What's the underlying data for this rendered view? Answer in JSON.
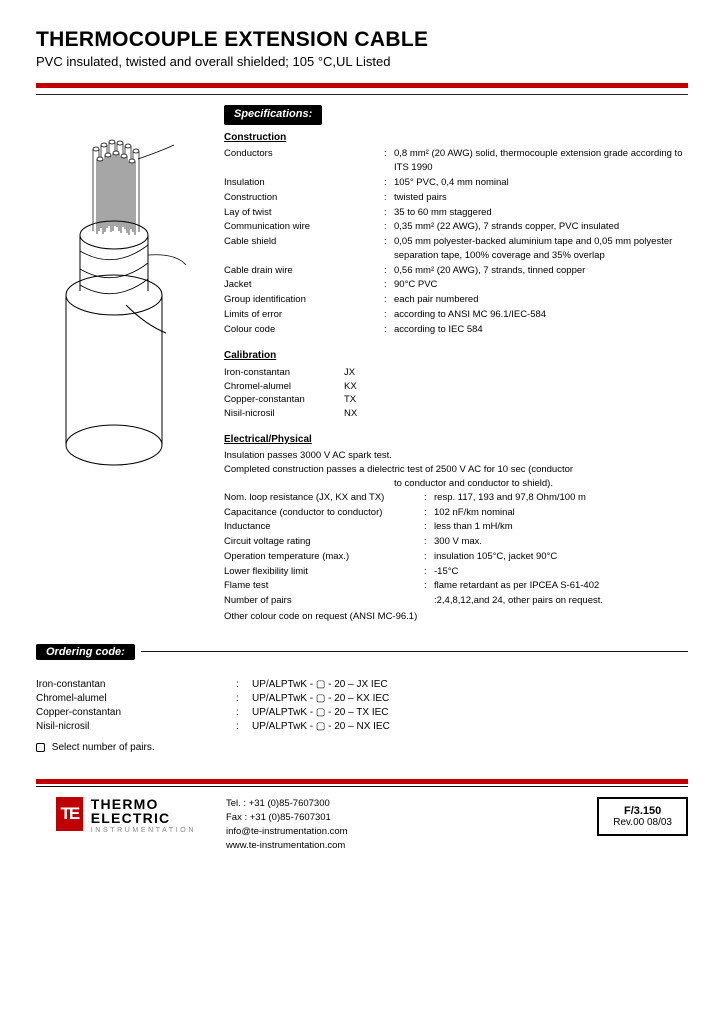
{
  "header": {
    "title": "THERMOCOUPLE EXTENSION CABLE",
    "subtitle": "PVC insulated, twisted and overall shielded; 105 °C,UL Listed",
    "redbar_color": "#c00000"
  },
  "spec_header": "Specifications:",
  "sections": {
    "construction": {
      "title": "Construction",
      "rows": [
        {
          "k": "Conductors",
          "v": "0,8 mm² (20 AWG) solid, thermocouple extension grade according to ITS 1990"
        },
        {
          "k": "Insulation",
          "v": "105° PVC, 0,4 mm nominal"
        },
        {
          "k": "Construction",
          "v": "twisted pairs"
        },
        {
          "k": "Lay of twist",
          "v": "35 to 60 mm staggered"
        },
        {
          "k": "Communication wire",
          "v": "0,35 mm² (22 AWG), 7 strands copper, PVC insulated"
        },
        {
          "k": "Cable shield",
          "v": "0,05 mm polyester-backed aluminium tape and 0,05 mm polyester separation tape, 100% coverage and 35% overlap"
        },
        {
          "k": "Cable drain wire",
          "v": "0,56 mm² (20 AWG), 7 strands, tinned   copper"
        },
        {
          "k": "Jacket",
          "v": "90°C PVC"
        },
        {
          "k": "Group identification",
          "v": "each pair numbered"
        },
        {
          "k": "Limits of error",
          "v": "according to ANSI MC 96.1/IEC-584"
        },
        {
          "k": "Colour code",
          "v": "according to IEC 584"
        }
      ]
    },
    "calibration": {
      "title": "Calibration",
      "rows": [
        {
          "k": "Iron-constantan",
          "v": "JX"
        },
        {
          "k": "Chromel-alumel",
          "v": "KX"
        },
        {
          "k": "Copper-constantan",
          "v": "TX"
        },
        {
          "k": "Nisil-nicrosil",
          "v": "NX"
        }
      ]
    },
    "electrical": {
      "title": "Electrical/Physical",
      "pre": [
        "Insulation passes 3000 V AC spark test.",
        "Completed construction passes a dielectric test of 2500 V AC for 10 sec (conductor"
      ],
      "pre_sub": "to conductor and conductor to shield).",
      "rows": [
        {
          "k": "Nom. loop resistance (JX, KX and TX)",
          "c": ":",
          "v": "resp. 117, 193 and 97,8 Ohm/100 m"
        },
        {
          "k": "Capacitance (conductor to conductor)",
          "c": ":",
          "v": "102 nF/km nominal"
        },
        {
          "k": "Inductance",
          "c": ":",
          "v": "less than 1 mH/km"
        },
        {
          "k": "Circuit voltage rating",
          "c": ":",
          "v": "300 V max."
        },
        {
          "k": "Operation temperature (max.)",
          "c": ":",
          "v": "insulation 105°C, jacket 90°C"
        },
        {
          "k": "Lower flexibility limit",
          "c": ":",
          "v": "-15°C"
        },
        {
          "k": "Flame test",
          "c": ":",
          "v": "flame retardant as per IPCEA S-61-402"
        },
        {
          "k": "Number of pairs",
          "c": "",
          "v": ":2,4,8,12,and 24, other pairs on request."
        }
      ],
      "post": "Other colour code on request (ANSI MC-96.1)"
    }
  },
  "ordering": {
    "title": "Ordering code:",
    "rows": [
      {
        "k": "Iron-constantan",
        "v": "UP/ALPTwK - ▢ - 20 – JX  IEC"
      },
      {
        "k": "Chromel-alumel",
        "v": "UP/ALPTwK - ▢ - 20 – KX  IEC"
      },
      {
        "k": "Copper-constantan",
        "v": "UP/ALPTwK - ▢ - 20 – TX  IEC"
      },
      {
        "k": "Nisil-nicrosil",
        "v": "UP/ALPTwK - ▢ - 20 – NX  IEC"
      }
    ],
    "note": "Select number of pairs."
  },
  "footer": {
    "logo": {
      "mark": "TE",
      "line1a": "THERMO",
      "line1b": "ELECTRIC",
      "line2": "INSTRUMENTATION",
      "mark_color": "#c00000"
    },
    "contact": {
      "tel": "Tel. : +31 (0)85-7607300",
      "fax": "Fax : +31 (0)85-7607301",
      "email": "info@te-instrumentation.com",
      "web": "www.te-instrumentation.com"
    },
    "doc": {
      "num": "F/3.150",
      "rev": "Rev.00   08/03"
    }
  }
}
